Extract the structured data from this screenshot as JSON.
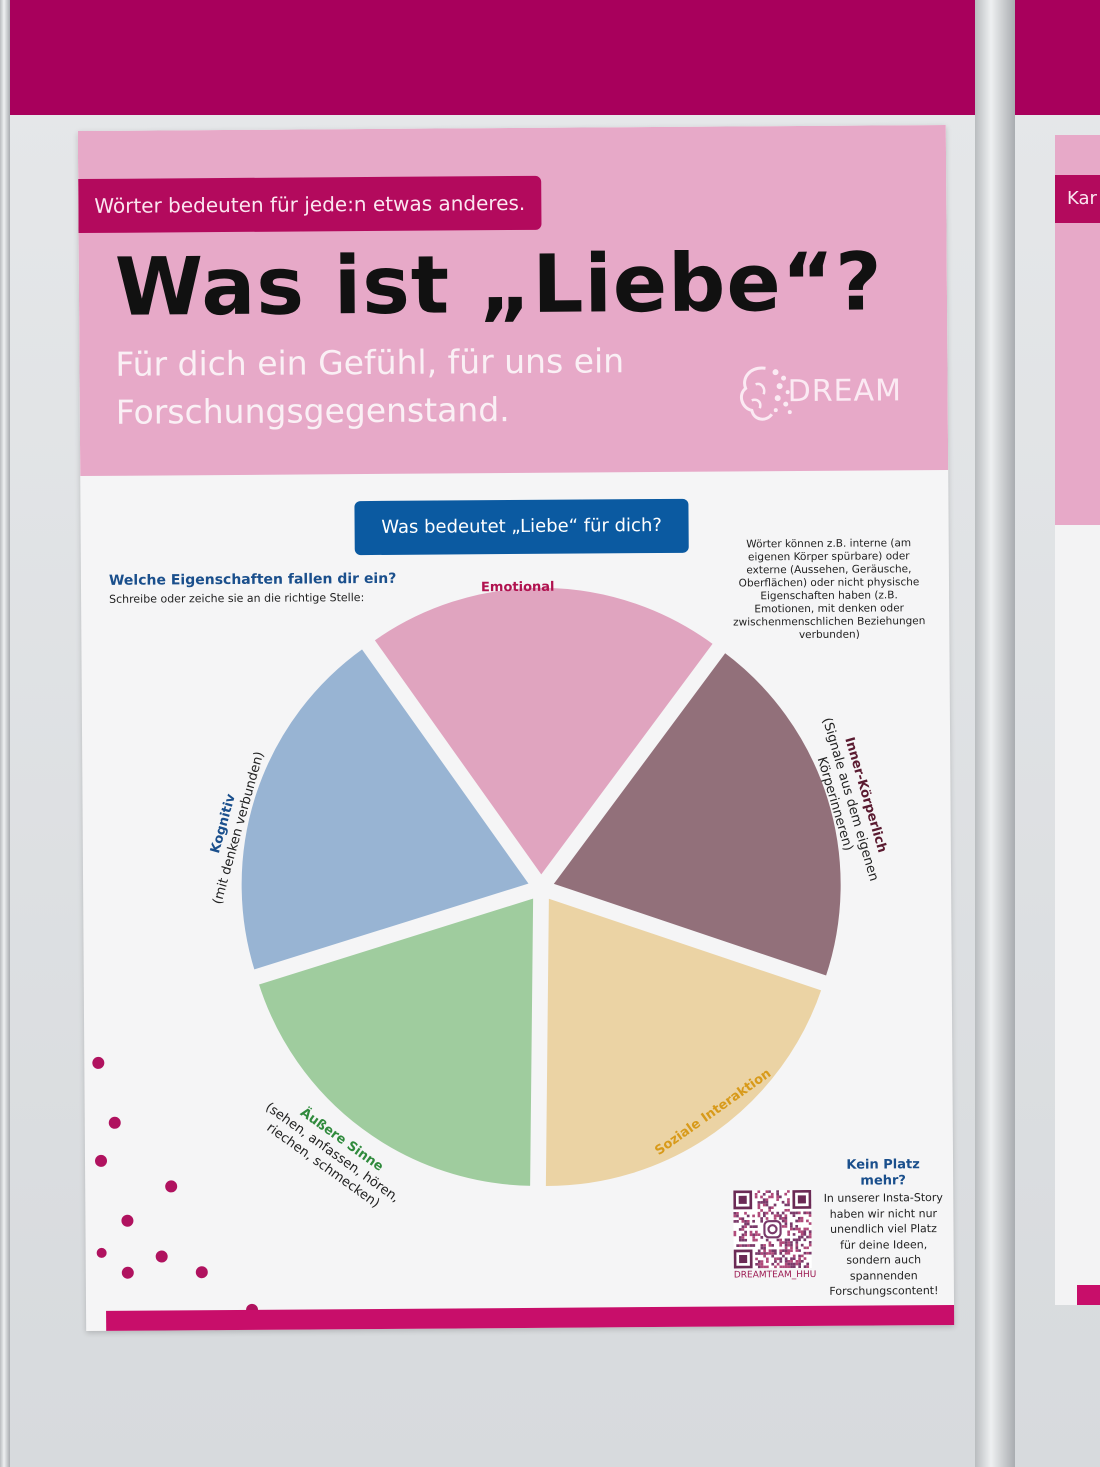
{
  "poster": {
    "tagline": "Wörter bedeuten für jede:n etwas anderes.",
    "headline": "Was ist „Liebe“?",
    "subline": "Für dich ein Gefühl, für uns ein Forschungsgegenstand.",
    "logo_text": "DREAM",
    "question_button": "Was bedeutet „Liebe“ für dich?",
    "prompt_title": "Welche Eigenschaften fallen dir ein?",
    "prompt_sub": "Schreibe oder zeiche sie an die richtige Stelle:",
    "note": "Wörter können z.B. interne (am eigenen Körper spürbare) oder externe (Aussehen, Geräusche, Oberflächen) oder nicht physische Eigenschaften haben (z.B. Emotionen, mit denken oder zwischenmenschlichen Beziehungen verbunden)",
    "segments": [
      {
        "title": "Emotional",
        "sub": "",
        "color": "#e0a4bf",
        "title_color": "#b0124f"
      },
      {
        "title": "Inner-Körperlich",
        "sub": "(Signale aus dem eigenen Körperinneren)",
        "color": "#92707a",
        "title_color": "#5a1a30"
      },
      {
        "title": "Soziale Interaktion",
        "sub": "",
        "color": "#ebd3a4",
        "title_color": "#d89a1a"
      },
      {
        "title": "Äußere Sinne",
        "sub": "(sehen, anfassen, hören, riechen, schmecken)",
        "color": "#9fcc9e",
        "title_color": "#2f8a3c"
      },
      {
        "title": "Kognitiv",
        "sub": "(mit denken verbunden)",
        "color": "#98b4d3",
        "title_color": "#1a4f8c"
      }
    ],
    "kein_platz": {
      "title": "Kein Platz mehr?",
      "text": "In unserer Insta-Story haben wir nicht nur unendlich viel Platz für deine Ideen, sondern auch spannenden Forschungscontent!"
    },
    "qr_handle": "DREAMTEAM_HHU"
  },
  "neighbor_poster": {
    "fragment": "Kar"
  },
  "colors": {
    "magenta": "#a8005c",
    "header_pink": "#e7a9c8",
    "pill_blue": "#0b5aa1"
  }
}
